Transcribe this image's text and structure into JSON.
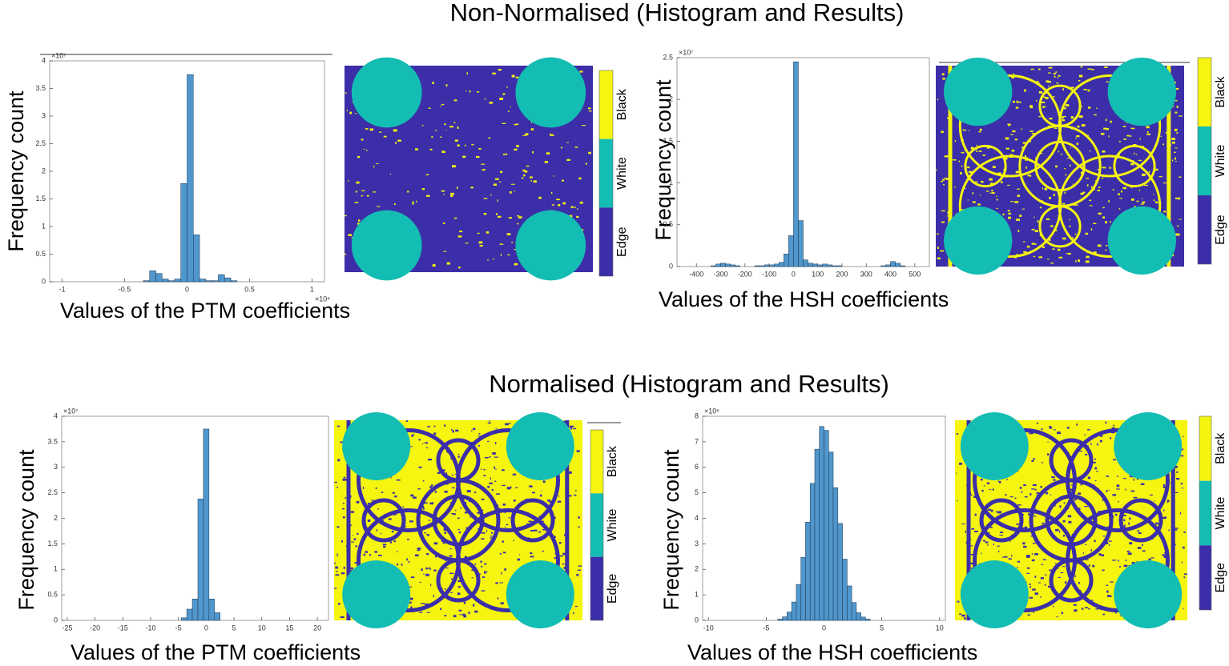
{
  "sections": [
    {
      "title": "Non-Normalised (Histogram and Results)"
    },
    {
      "title": "Normalised (Histogram and Results)"
    }
  ],
  "colorbar": {
    "labels": [
      "Black",
      "White",
      "Edge"
    ],
    "colors": [
      "#f5f50f",
      "#14bdb3",
      "#3b2ea8"
    ]
  },
  "chart_data": [
    {
      "type": "histogram",
      "ylabel": "Frequency count",
      "xlabel": "Values of the PTM coefficients",
      "y_exponent": "×10⁷",
      "x_exponent": "×10⁴",
      "color": "#4f97cc",
      "bins": [
        -0.35,
        -0.3,
        -0.25,
        -0.2,
        -0.15,
        -0.1,
        -0.05,
        0,
        0.05,
        0.1,
        0.15,
        0.2,
        0.25,
        0.3,
        0.35,
        0.4
      ],
      "counts": [
        0.02,
        0.2,
        0.15,
        0.05,
        0.02,
        0.05,
        1.78,
        3.75,
        0.85,
        0.05,
        0.02,
        0.02,
        0.13,
        0.07,
        0.02
      ],
      "xlim": [
        -1.1,
        1.1
      ],
      "xticks": [
        -1,
        -0.5,
        0,
        0.5,
        1
      ],
      "ylim": [
        0,
        4
      ],
      "yticks": [
        0,
        0.5,
        1,
        1.5,
        2,
        2.5,
        3,
        3.5,
        4
      ]
    },
    {
      "type": "histogram",
      "ylabel": "Frequency count",
      "xlabel": "Values of the HSH coefficients",
      "y_exponent": "×10⁷",
      "color": "#4f97cc",
      "bins": [
        -340,
        -320,
        -300,
        -280,
        -260,
        -240,
        -220,
        -200,
        -180,
        -160,
        -140,
        -120,
        -100,
        -80,
        -60,
        -40,
        -20,
        0,
        20,
        40,
        60,
        80,
        100,
        120,
        140,
        160,
        180,
        200,
        220,
        240,
        260,
        280,
        300,
        320,
        340,
        360,
        380,
        400,
        420,
        440,
        460
      ],
      "counts": [
        0.01,
        0.03,
        0.04,
        0.03,
        0.02,
        0.01,
        0,
        0,
        0,
        0.01,
        0.01,
        0.02,
        0.02,
        0.03,
        0.05,
        0.15,
        0.37,
        2.45,
        0.55,
        0.08,
        0.04,
        0.03,
        0.02,
        0.03,
        0.02,
        0.01,
        0.01,
        0,
        0,
        0,
        0,
        0,
        0,
        0,
        0,
        0.01,
        0.02,
        0.06,
        0.04,
        0.01
      ],
      "xlim": [
        -480,
        560
      ],
      "xticks": [
        -400,
        -300,
        -200,
        -100,
        0,
        100,
        200,
        300,
        400,
        500
      ],
      "ylim": [
        0,
        2.5
      ],
      "yticks": [
        0,
        0.5,
        1,
        1.5,
        2,
        2.5
      ]
    },
    {
      "type": "histogram",
      "ylabel": "Frequency count",
      "xlabel": "Values of the PTM coefficients",
      "y_exponent": "×10⁷",
      "color": "#4f97cc",
      "bins": [
        -4.5,
        -3.5,
        -2.5,
        -1.5,
        -0.5,
        0.5,
        1.5,
        2.5
      ],
      "counts": [
        0.05,
        0.22,
        0.42,
        2.38,
        3.75,
        0.42,
        0.15
      ],
      "xlim": [
        -26,
        22
      ],
      "xticks": [
        -25,
        -20,
        -15,
        -10,
        -5,
        0,
        5,
        10,
        15,
        20
      ],
      "ylim": [
        0,
        4
      ],
      "yticks": [
        0,
        0.5,
        1,
        1.5,
        2,
        2.5,
        3,
        3.5,
        4
      ]
    },
    {
      "type": "histogram",
      "ylabel": "Frequency count",
      "xlabel": "Values of the HSH coefficients",
      "y_exponent": "×10⁶",
      "color": "#4f97cc",
      "bins": [
        -4,
        -3.6,
        -3.2,
        -2.8,
        -2.4,
        -2,
        -1.6,
        -1.2,
        -0.8,
        -0.4,
        0,
        0.4,
        0.8,
        1.2,
        1.6,
        2,
        2.4,
        2.8,
        3.2,
        3.6,
        4
      ],
      "counts": [
        0.05,
        0.14,
        0.33,
        0.72,
        1.41,
        2.47,
        3.85,
        5.37,
        6.71,
        7.6,
        7.45,
        6.6,
        5.2,
        3.8,
        2.4,
        1.35,
        0.7,
        0.3,
        0.13,
        0.05
      ],
      "xlim": [
        -10.5,
        10.5
      ],
      "xticks": [
        -10,
        -5,
        0,
        5,
        10
      ],
      "ylim": [
        0,
        8
      ],
      "yticks": [
        0,
        1,
        2,
        3,
        4,
        5,
        6,
        7,
        8
      ]
    }
  ]
}
